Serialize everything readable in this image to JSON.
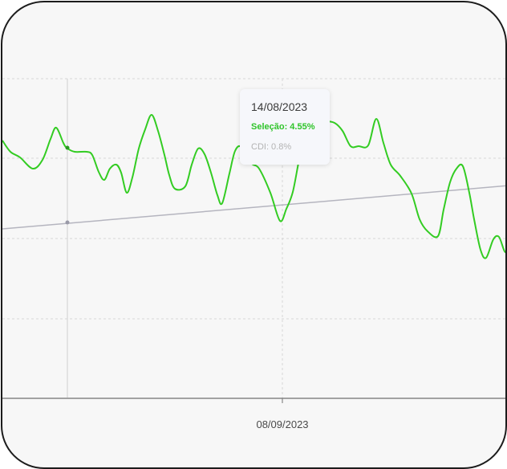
{
  "tooltip": {
    "date": "14/08/2023",
    "selecao": "Seleção: 4.55%",
    "cdi": "CDI: 0.8%"
  },
  "colors": {
    "selecao": "#33cc22",
    "cdi": "#b5b5bf",
    "grid": "#d7d7d7",
    "axis": "#707070"
  },
  "chart_data": {
    "type": "line",
    "x_tick_labels": [
      "08/09/2023"
    ],
    "grid": true,
    "series": [
      {
        "name": "Seleção",
        "color": "#33cc22",
        "values": [
          [
            0,
            172
          ],
          [
            10,
            186
          ],
          [
            22,
            193
          ],
          [
            38,
            207
          ],
          [
            50,
            196
          ],
          [
            60,
            170
          ],
          [
            67,
            156
          ],
          [
            76,
            175
          ],
          [
            80,
            181
          ],
          [
            90,
            186
          ],
          [
            105,
            186
          ],
          [
            112,
            190
          ],
          [
            120,
            211
          ],
          [
            127,
            221
          ],
          [
            134,
            207
          ],
          [
            142,
            202
          ],
          [
            148,
            212
          ],
          [
            155,
            237
          ],
          [
            162,
            218
          ],
          [
            170,
            182
          ],
          [
            178,
            158
          ],
          [
            186,
            140
          ],
          [
            194,
            160
          ],
          [
            202,
            190
          ],
          [
            208,
            215
          ],
          [
            215,
            232
          ],
          [
            228,
            229
          ],
          [
            236,
            202
          ],
          [
            244,
            182
          ],
          [
            252,
            189
          ],
          [
            260,
            212
          ],
          [
            268,
            240
          ],
          [
            274,
            250
          ],
          [
            283,
            213
          ],
          [
            290,
            185
          ],
          [
            298,
            180
          ],
          [
            310,
            200
          ],
          [
            320,
            207
          ],
          [
            334,
            237
          ],
          [
            346,
            272
          ],
          [
            354,
            257
          ],
          [
            362,
            236
          ],
          [
            370,
            195
          ],
          [
            378,
            160
          ],
          [
            390,
            150
          ],
          [
            402,
            148
          ],
          [
            414,
            150
          ],
          [
            424,
            160
          ],
          [
            434,
            179
          ],
          [
            444,
            179
          ],
          [
            456,
            178
          ],
          [
            466,
            145
          ],
          [
            475,
            175
          ],
          [
            484,
            202
          ],
          [
            496,
            216
          ],
          [
            510,
            238
          ],
          [
            520,
            270
          ],
          [
            530,
            285
          ],
          [
            543,
            291
          ],
          [
            550,
            258
          ],
          [
            558,
            224
          ],
          [
            566,
            207
          ],
          [
            574,
            204
          ],
          [
            582,
            237
          ],
          [
            588,
            270
          ],
          [
            596,
            308
          ],
          [
            603,
            318
          ],
          [
            612,
            295
          ],
          [
            619,
            292
          ],
          [
            626,
            310
          ],
          [
            632,
            312
          ]
        ]
      },
      {
        "name": "CDI",
        "color": "#b5b5bf",
        "values": [
          [
            0,
            282
          ],
          [
            632,
            228
          ]
        ]
      }
    ]
  }
}
